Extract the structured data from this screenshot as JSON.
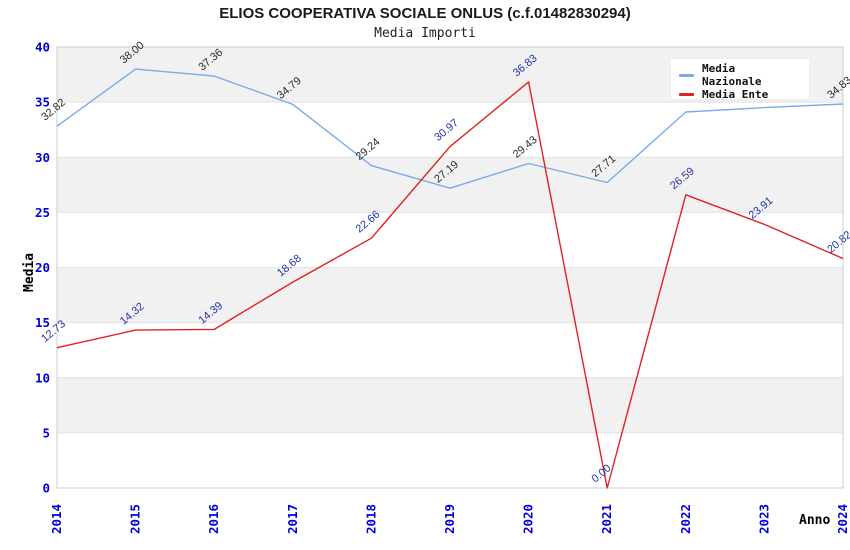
{
  "chart_data": {
    "type": "line",
    "title": "ELIOS COOPERATIVA SOCIALE ONLUS (c.f.01482830294)",
    "subtitle": "Media Importi",
    "xlabel": "Anno",
    "ylabel": "Media",
    "ylim": [
      0,
      40
    ],
    "y_ticks": [
      0,
      5,
      10,
      15,
      20,
      25,
      30,
      35,
      40
    ],
    "categories": [
      "2014",
      "2015",
      "2016",
      "2017",
      "2018",
      "2019",
      "2020",
      "2021",
      "2022",
      "2023",
      "2024"
    ],
    "series": [
      {
        "name": "Media Nazionale",
        "color": "#7aabea",
        "values": [
          32.82,
          38.0,
          37.36,
          34.79,
          29.24,
          27.19,
          29.43,
          27.71,
          34.1,
          34.5,
          34.83
        ],
        "point_labels": [
          "32.82",
          "38.00",
          "37.36",
          "34.79",
          "29.24",
          "27.19",
          "29.43",
          "27.71",
          "",
          "",
          "34.83"
        ],
        "label_color": "#2b2b2b"
      },
      {
        "name": "Media Ente",
        "color": "#e02222",
        "values": [
          12.73,
          14.32,
          14.39,
          18.68,
          22.66,
          30.97,
          36.83,
          0.0,
          26.59,
          23.91,
          20.82
        ],
        "point_labels": [
          "12.73",
          "14.32",
          "14.39",
          "18.68",
          "22.66",
          "30.97",
          "36.83",
          "0.00",
          "26.59",
          "23.91",
          "20.82"
        ],
        "label_color": "#2233aa"
      }
    ],
    "legend_position": "top-right",
    "grid": "alternating-horizontal-bands",
    "band_color": "#f1f1f1",
    "gridline_color": "#e2e2e2",
    "plot_border_color": "#cccccc",
    "axis_tick_color": "#0000dd"
  }
}
